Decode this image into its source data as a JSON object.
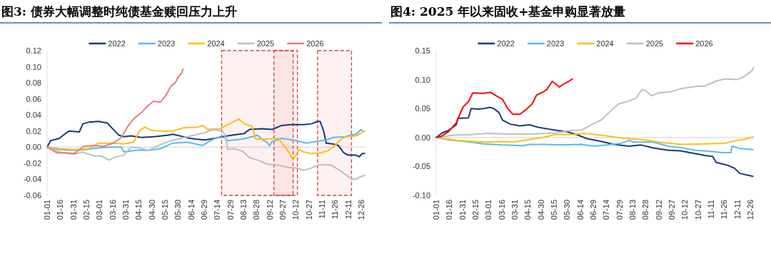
{
  "chart_data": [
    {
      "type": "line",
      "title": "图3: 债券大幅调整时纯债基金赎回压力上升",
      "legend": "top",
      "xlim": [
        "--01-01",
        "--12-31"
      ],
      "xticks": [
        {
          "value": "--01-01",
          "label": "01-01"
        },
        {
          "value": "--01-16",
          "label": "01-16"
        },
        {
          "value": "--01-31",
          "label": "01-31"
        },
        {
          "value": "--02-15",
          "label": "02-15"
        },
        {
          "value": "--03-01",
          "label": "03-01"
        },
        {
          "value": "--03-16",
          "label": "03-16"
        },
        {
          "value": "--03-31",
          "label": "03-31"
        },
        {
          "value": "--04-15",
          "label": "04-15"
        },
        {
          "value": "--04-30",
          "label": "04-30"
        },
        {
          "value": "--05-15",
          "label": "05-15"
        },
        {
          "value": "--05-30",
          "label": "05-30"
        },
        {
          "value": "--06-14",
          "label": "06-14"
        },
        {
          "value": "--06-29",
          "label": "06-29"
        },
        {
          "value": "--07-14",
          "label": "07-14"
        },
        {
          "value": "--07-29",
          "label": "07-29"
        },
        {
          "value": "--08-13",
          "label": "08-13"
        },
        {
          "value": "--08-28",
          "label": "08-28"
        },
        {
          "value": "--09-12",
          "label": "09-12"
        },
        {
          "value": "--09-27",
          "label": "09-27"
        },
        {
          "value": "--10-12",
          "label": "10-12"
        },
        {
          "value": "--10-27",
          "label": "10-27"
        },
        {
          "value": "--11-11",
          "label": "11-11"
        },
        {
          "value": "--11-26",
          "label": "11-26"
        },
        {
          "value": "--12-11",
          "label": "12-11"
        },
        {
          "value": "--12-26",
          "label": "12-26"
        }
      ],
      "ylim": [
        -0.06,
        0.12
      ],
      "yticks": [
        {
          "value": -0.06,
          "label": "-0.06"
        },
        {
          "value": -0.04,
          "label": "-0.04"
        },
        {
          "value": -0.02,
          "label": "-0.02"
        },
        {
          "value": 0,
          "label": "0.00"
        },
        {
          "value": 0.02,
          "label": "0.02"
        },
        {
          "value": 0.04,
          "label": "0.04"
        },
        {
          "value": 0.06,
          "label": "0.06"
        },
        {
          "value": 0.08,
          "label": "0.08"
        },
        {
          "value": 0.1,
          "label": "0.10"
        },
        {
          "value": 0.12,
          "label": "0.12"
        }
      ],
      "bands": [
        {
          "axis": "x",
          "from": "--07-19",
          "to": "--10-14",
          "color": "#e03c3c"
        },
        {
          "axis": "x",
          "from": "--09-17",
          "to": "--10-09",
          "color": "#e03c3c"
        },
        {
          "axis": "x",
          "from": "--11-06",
          "to": "--12-15",
          "color": "#e03c3c"
        }
      ],
      "series": [
        {
          "name": "2022",
          "color": "#17397a",
          "x": [
            "--01-01",
            "--01-05",
            "--01-15",
            "--01-21",
            "--01-26",
            "--02-07",
            "--02-11",
            "--02-18",
            "--02-29",
            "--03-10",
            "--03-16",
            "--03-23",
            "--03-29",
            "--04-06",
            "--04-18",
            "--05-02",
            "--05-19",
            "--05-24",
            "--06-05",
            "--06-13",
            "--06-19",
            "--06-30",
            "--07-11",
            "--07-20",
            "--07-31",
            "--08-14",
            "--08-20",
            "--09-03",
            "--09-15",
            "--09-26",
            "--10-07",
            "--10-21",
            "--10-30",
            "--11-06",
            "--11-09",
            "--11-13",
            "--11-16",
            "--11-23",
            "--11-30",
            "--12-06",
            "--12-11",
            "--12-20",
            "--12-24",
            "--12-27",
            "--12-30"
          ],
          "values": [
            0,
            0.008,
            0.011,
            0.016,
            0.02,
            0.019,
            0.029,
            0.031,
            0.032,
            0.03,
            0.023,
            0.015,
            0.013,
            0.014,
            0.012,
            0.013,
            0.015,
            0.016,
            0.013,
            0.011,
            0.01,
            0.009,
            0.011,
            0.013,
            0.015,
            0.017,
            0.022,
            0.023,
            0.022,
            0.027,
            0.028,
            0.028,
            0.029,
            0.032,
            0.032,
            0.02,
            0.005,
            0.004,
            0.002,
            -0.007,
            -0.01,
            -0.01,
            -0.012,
            -0.008,
            -0.008
          ]
        },
        {
          "name": "2023",
          "color": "#5bb8f5",
          "x": [
            "--01-01",
            "--01-15",
            "--02-01",
            "--02-15",
            "--02-29",
            "--03-15",
            "--03-26",
            "--03-29",
            "--04-12",
            "--04-26",
            "--05-10",
            "--05-24",
            "--06-10",
            "--06-27",
            "--07-06",
            "--07-14",
            "--07-23",
            "--07-26",
            "--08-12",
            "--08-23",
            "--08-29",
            "--09-03",
            "--09-09",
            "--09-12",
            "--09-15",
            "--09-26",
            "--10-13",
            "--10-24",
            "--11-04",
            "--11-16",
            "--11-24",
            "--12-08",
            "--12-14",
            "--12-20",
            "--12-26",
            "--12-28"
          ],
          "values": [
            0,
            -0.003,
            -0.004,
            -0.003,
            -0.001,
            0.0,
            0.0,
            -0.006,
            -0.004,
            -0.004,
            -0.002,
            0.005,
            0.006,
            0.002,
            0.008,
            0.012,
            0.012,
            0.008,
            0.01,
            0.013,
            0.015,
            0.01,
            0.006,
            0.002,
            0.007,
            0.011,
            0.008,
            0.005,
            0.007,
            0.009,
            0.012,
            0.013,
            0.015,
            0.016,
            0.022,
            0.019
          ]
        },
        {
          "name": "2024",
          "color": "#fdbf12",
          "x": [
            "--01-01",
            "--01-15",
            "--02-01",
            "--02-18",
            "--02-29",
            "--03-15",
            "--03-29",
            "--04-09",
            "--04-16",
            "--04-22",
            "--04-29",
            "--05-10",
            "--05-24",
            "--06-05",
            "--06-22",
            "--06-27",
            "--07-03",
            "--07-17",
            "--07-28",
            "--08-08",
            "--08-14",
            "--08-23",
            "--08-27",
            "--09-09",
            "--09-22",
            "--09-26",
            "--10-04",
            "--10-09",
            "--10-13",
            "--10-16",
            "--10-21",
            "--10-30",
            "--11-10",
            "--11-19",
            "--11-27",
            "--12-03",
            "--12-08",
            "--12-20",
            "--12-30"
          ],
          "values": [
            0,
            -0.002,
            -0.003,
            -0.002,
            0.005,
            0.005,
            0.004,
            0.006,
            0.02,
            0.025,
            0.021,
            0.02,
            0.02,
            0.024,
            0.025,
            0.027,
            0.022,
            0.023,
            0.029,
            0.035,
            0.029,
            0.026,
            0.01,
            0.01,
            0.011,
            0.005,
            -0.006,
            -0.016,
            -0.008,
            -0.003,
            -0.006,
            -0.008,
            -0.007,
            -0.004,
            0.003,
            0.01,
            0.013,
            0.014,
            0.02
          ]
        },
        {
          "name": "2025",
          "color": "#bfbfbf",
          "x": [
            "--01-01",
            "--01-18",
            "--02-01",
            "--02-10",
            "--02-24",
            "--03-03",
            "--03-12",
            "--03-20",
            "--03-29",
            "--04-06",
            "--04-15",
            "--04-26",
            "--05-07",
            "--05-22",
            "--05-30",
            "--06-10",
            "--06-22",
            "--06-30",
            "--07-09",
            "--07-20",
            "--07-23",
            "--07-26",
            "--08-03",
            "--08-12",
            "--08-20",
            "--08-29",
            "--09-09",
            "--09-20",
            "--10-02",
            "--10-13",
            "--10-21",
            "--10-30",
            "--11-07",
            "--11-21",
            "--12-03",
            "--12-14",
            "--12-20",
            "--12-25",
            "--12-30"
          ],
          "values": [
            0,
            -0.007,
            -0.009,
            -0.006,
            -0.011,
            -0.011,
            -0.016,
            -0.012,
            -0.01,
            0.0,
            -0.001,
            -0.004,
            0.002,
            0.008,
            0.01,
            0.013,
            0.016,
            0.018,
            0.022,
            0.02,
            0.015,
            -0.003,
            -0.002,
            -0.005,
            -0.013,
            -0.016,
            -0.021,
            -0.022,
            -0.025,
            -0.026,
            -0.029,
            -0.026,
            -0.022,
            -0.022,
            -0.03,
            -0.039,
            -0.04,
            -0.037,
            -0.035
          ]
        },
        {
          "name": "2026",
          "color": "#ee7a7a",
          "x": [
            "--01-01",
            "--01-12",
            "--01-24",
            "--02-01",
            "--02-12",
            "--02-24",
            "--03-06",
            "--03-17",
            "--03-26",
            "--04-02",
            "--04-09",
            "--04-18",
            "--04-26",
            "--05-02",
            "--05-10",
            "--05-16",
            "--05-22",
            "--05-27",
            "--05-30",
            "--06-03",
            "--06-05"
          ],
          "values": [
            0,
            -0.007,
            -0.007,
            -0.008,
            0.001,
            0.002,
            0.001,
            0.005,
            0.012,
            0.025,
            0.035,
            0.043,
            0.052,
            0.057,
            0.056,
            0.064,
            0.076,
            0.08,
            0.087,
            0.092,
            0.097
          ]
        }
      ]
    },
    {
      "type": "line",
      "title": "图4: 2025 年以来固收+基金申购显著放量",
      "legend": "top",
      "xlim": [
        "--01-01",
        "--12-31"
      ],
      "xticks": [
        {
          "value": "--01-01",
          "label": "01-01"
        },
        {
          "value": "--01-16",
          "label": "01-16"
        },
        {
          "value": "--01-31",
          "label": "01-31"
        },
        {
          "value": "--02-15",
          "label": "02-15"
        },
        {
          "value": "--03-01",
          "label": "03-01"
        },
        {
          "value": "--03-16",
          "label": "03-16"
        },
        {
          "value": "--03-31",
          "label": "03-31"
        },
        {
          "value": "--04-15",
          "label": "04-15"
        },
        {
          "value": "--04-30",
          "label": "04-30"
        },
        {
          "value": "--05-15",
          "label": "05-15"
        },
        {
          "value": "--05-30",
          "label": "05-30"
        },
        {
          "value": "--06-14",
          "label": "06-14"
        },
        {
          "value": "--06-29",
          "label": "06-29"
        },
        {
          "value": "--07-14",
          "label": "07-14"
        },
        {
          "value": "--07-29",
          "label": "07-29"
        },
        {
          "value": "--08-13",
          "label": "08-13"
        },
        {
          "value": "--08-28",
          "label": "08-28"
        },
        {
          "value": "--09-12",
          "label": "09-12"
        },
        {
          "value": "--09-27",
          "label": "09-27"
        },
        {
          "value": "--10-12",
          "label": "10-12"
        },
        {
          "value": "--10-27",
          "label": "10-27"
        },
        {
          "value": "--11-11",
          "label": "11-11"
        },
        {
          "value": "--11-26",
          "label": "11-26"
        },
        {
          "value": "--12-11",
          "label": "12-11"
        },
        {
          "value": "--12-26",
          "label": "12-26"
        }
      ],
      "ylim": [
        -0.1,
        0.15
      ],
      "yticks": [
        {
          "value": -0.1,
          "label": "-0.10"
        },
        {
          "value": -0.05,
          "label": "-0.05"
        },
        {
          "value": 0,
          "label": "0.00"
        },
        {
          "value": 0.05,
          "label": "0.05"
        },
        {
          "value": 0.1,
          "label": "0.10"
        },
        {
          "value": 0.15,
          "label": "0.15"
        }
      ],
      "series": [
        {
          "name": "2022",
          "color": "#17397a",
          "x": [
            "--01-01",
            "--01-08",
            "--01-15",
            "--01-24",
            "--01-26",
            "--02-07",
            "--02-10",
            "--02-18",
            "--02-24",
            "--03-03",
            "--03-07",
            "--03-13",
            "--03-17",
            "--03-26",
            "--04-06",
            "--04-17",
            "--04-26",
            "--05-07",
            "--05-19",
            "--05-30",
            "--06-10",
            "--06-22",
            "--07-06",
            "--07-23",
            "--08-09",
            "--08-23",
            "--09-06",
            "--09-23",
            "--10-07",
            "--10-21",
            "--11-04",
            "--11-13",
            "--11-17",
            "--11-30",
            "--12-08",
            "--12-14",
            "--12-29"
          ],
          "values": [
            0,
            0.008,
            0.012,
            0.022,
            0.033,
            0.034,
            0.05,
            0.049,
            0.05,
            0.052,
            0.05,
            0.043,
            0.03,
            0.023,
            0.02,
            0.022,
            0.018,
            0.015,
            0.012,
            0.01,
            0.005,
            -0.002,
            -0.006,
            -0.012,
            -0.015,
            -0.013,
            -0.018,
            -0.022,
            -0.023,
            -0.027,
            -0.031,
            -0.033,
            -0.043,
            -0.048,
            -0.053,
            -0.062,
            -0.067
          ]
        },
        {
          "name": "2023",
          "color": "#5bb8f5",
          "x": [
            "--01-01",
            "--01-15",
            "--02-04",
            "--02-24",
            "--03-17",
            "--04-09",
            "--04-17",
            "--05-04",
            "--05-24",
            "--06-16",
            "--06-30",
            "--07-14",
            "--07-31",
            "--08-09",
            "--08-14",
            "--09-06",
            "--09-23",
            "--10-10",
            "--10-24",
            "--11-10",
            "--11-24",
            "--12-04",
            "--12-05",
            "--12-14",
            "--12-29"
          ],
          "values": [
            0,
            -0.004,
            -0.007,
            -0.011,
            -0.013,
            -0.014,
            -0.012,
            -0.012,
            -0.013,
            -0.012,
            -0.015,
            -0.013,
            -0.01,
            -0.005,
            -0.008,
            -0.008,
            -0.015,
            -0.018,
            -0.022,
            -0.024,
            -0.026,
            -0.026,
            -0.015,
            -0.019,
            -0.021
          ]
        },
        {
          "name": "2024",
          "color": "#fdbf12",
          "x": [
            "--01-01",
            "--01-24",
            "--02-24",
            "--03-15",
            "--03-29",
            "--04-15",
            "--05-02",
            "--05-16",
            "--06-05",
            "--06-19",
            "--07-08",
            "--07-31",
            "--08-26",
            "--09-12",
            "--10-07",
            "--11-04",
            "--11-27",
            "--12-11",
            "--12-19",
            "--12-29"
          ],
          "values": [
            0,
            -0.005,
            -0.008,
            -0.007,
            -0.008,
            -0.004,
            0.0,
            0.005,
            0.005,
            0.007,
            0.004,
            -0.001,
            -0.004,
            -0.008,
            -0.012,
            -0.011,
            -0.01,
            -0.005,
            -0.003,
            0.001
          ]
        },
        {
          "name": "2025",
          "color": "#bfbfbf",
          "x": [
            "--01-01",
            "--01-21",
            "--02-10",
            "--02-29",
            "--03-23",
            "--04-20",
            "--05-19",
            "--06-02",
            "--06-16",
            "--06-27",
            "--07-08",
            "--07-17",
            "--07-28",
            "--08-09",
            "--08-17",
            "--08-24",
            "--08-28",
            "--09-04",
            "--09-12",
            "--09-26",
            "--10-07",
            "--10-24",
            "--11-04",
            "--11-18",
            "--11-27",
            "--12-11",
            "--12-19",
            "--12-28",
            "--12-30"
          ],
          "values": [
            0,
            0.004,
            0.005,
            0.007,
            0.006,
            0.006,
            0.008,
            0.012,
            0.013,
            0.022,
            0.03,
            0.043,
            0.058,
            0.063,
            0.068,
            0.083,
            0.081,
            0.072,
            0.077,
            0.079,
            0.084,
            0.088,
            0.089,
            0.098,
            0.101,
            0.1,
            0.105,
            0.115,
            0.121
          ]
        },
        {
          "name": "2026",
          "color": "#ff0000",
          "x": [
            "--01-01",
            "--01-07",
            "--01-15",
            "--01-24",
            "--01-29",
            "--02-01",
            "--02-07",
            "--02-12",
            "--02-24",
            "--03-03",
            "--03-12",
            "--03-17",
            "--03-23",
            "--03-29",
            "--04-06",
            "--04-12",
            "--04-20",
            "--04-25",
            "--05-02",
            "--05-07",
            "--05-13",
            "--05-19",
            "--05-21",
            "--05-27",
            "--05-31",
            "--06-05"
          ],
          "values": [
            0,
            0.002,
            0.01,
            0.025,
            0.043,
            0.053,
            0.062,
            0.077,
            0.076,
            0.078,
            0.07,
            0.066,
            0.05,
            0.04,
            0.04,
            0.047,
            0.058,
            0.073,
            0.078,
            0.083,
            0.097,
            0.09,
            0.087,
            0.093,
            0.096,
            0.101
          ]
        }
      ]
    }
  ]
}
